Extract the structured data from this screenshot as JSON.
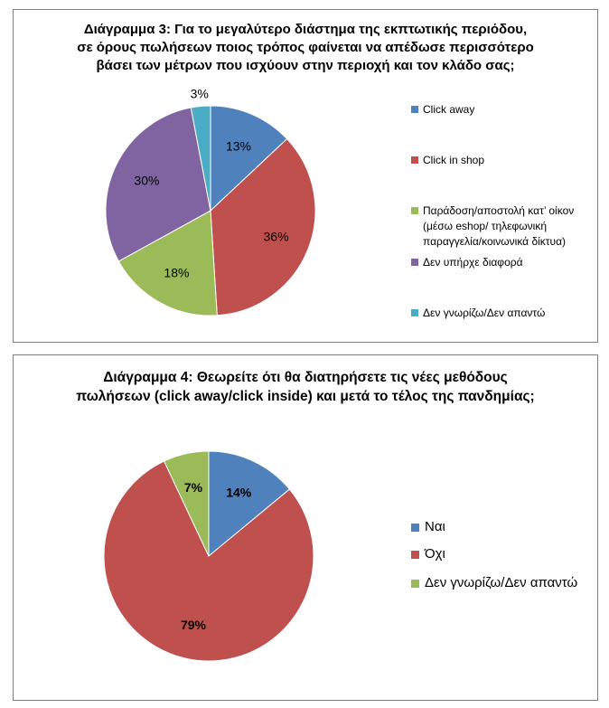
{
  "chart_data": [
    {
      "type": "pie",
      "title": [
        "Διάγραμμα 3:  Για το μεγαλύτερο διάστημα της εκπτωτικής περιόδου,",
        "σε όρους πωλήσεων ποιος τρόπος φαίνεται να απέδωσε περισσότερο",
        "βάσει των μέτρων που ισχύουν στην περιοχή και τον κλάδο σας;"
      ],
      "categories": [
        "Click away",
        "Click in shop",
        "Παράδοση/αποστολή κατ' οίκον (μέσω eshop/ τηλεφωνική παραγγελία/κοινωνικά δίκτυα)",
        "Δεν υπήρχε διαφορά",
        "Δεν γνωρίζω/Δεν απαντώ"
      ],
      "legend_lines": [
        [
          "Click away"
        ],
        [
          "Click in shop"
        ],
        [
          "Παράδοση/αποστολή κατ’ οίκον",
          "(μέσω eshop/ τηλεφωνική",
          "παραγγελία/κοινωνικά δίκτυα)"
        ],
        [
          "Δεν υπήρχε διαφορά"
        ],
        [
          "Δεν γνωρίζω/Δεν απαντώ"
        ]
      ],
      "values": [
        13,
        36,
        18,
        30,
        3
      ],
      "labels": [
        "13%",
        "36%",
        "18%",
        "30%",
        "3%"
      ],
      "colors": [
        "#4f81bd",
        "#c0504d",
        "#9bbb59",
        "#8064a2",
        "#4bacc6"
      ],
      "legend_position": "right"
    },
    {
      "type": "pie",
      "title": [
        "Διάγραμμα 4: Θεωρείτε ότι θα διατηρήσετε τις νέες μεθόδους",
        "πωλήσεων (click away/click inside) και μετά το τέλος της πανδημίας;"
      ],
      "categories": [
        "Ναι",
        "Όχι",
        "Δεν γνωρίζω/Δεν απαντώ"
      ],
      "legend_lines": [
        [
          "Ναι"
        ],
        [
          "Όχι"
        ],
        [
          "Δεν γνωρίζω/Δεν απαντώ"
        ]
      ],
      "values": [
        14,
        79,
        7
      ],
      "labels": [
        "14%",
        "79%",
        "7%"
      ],
      "colors": [
        "#4f81bd",
        "#c0504d",
        "#9bbb59"
      ],
      "legend_position": "right"
    }
  ]
}
